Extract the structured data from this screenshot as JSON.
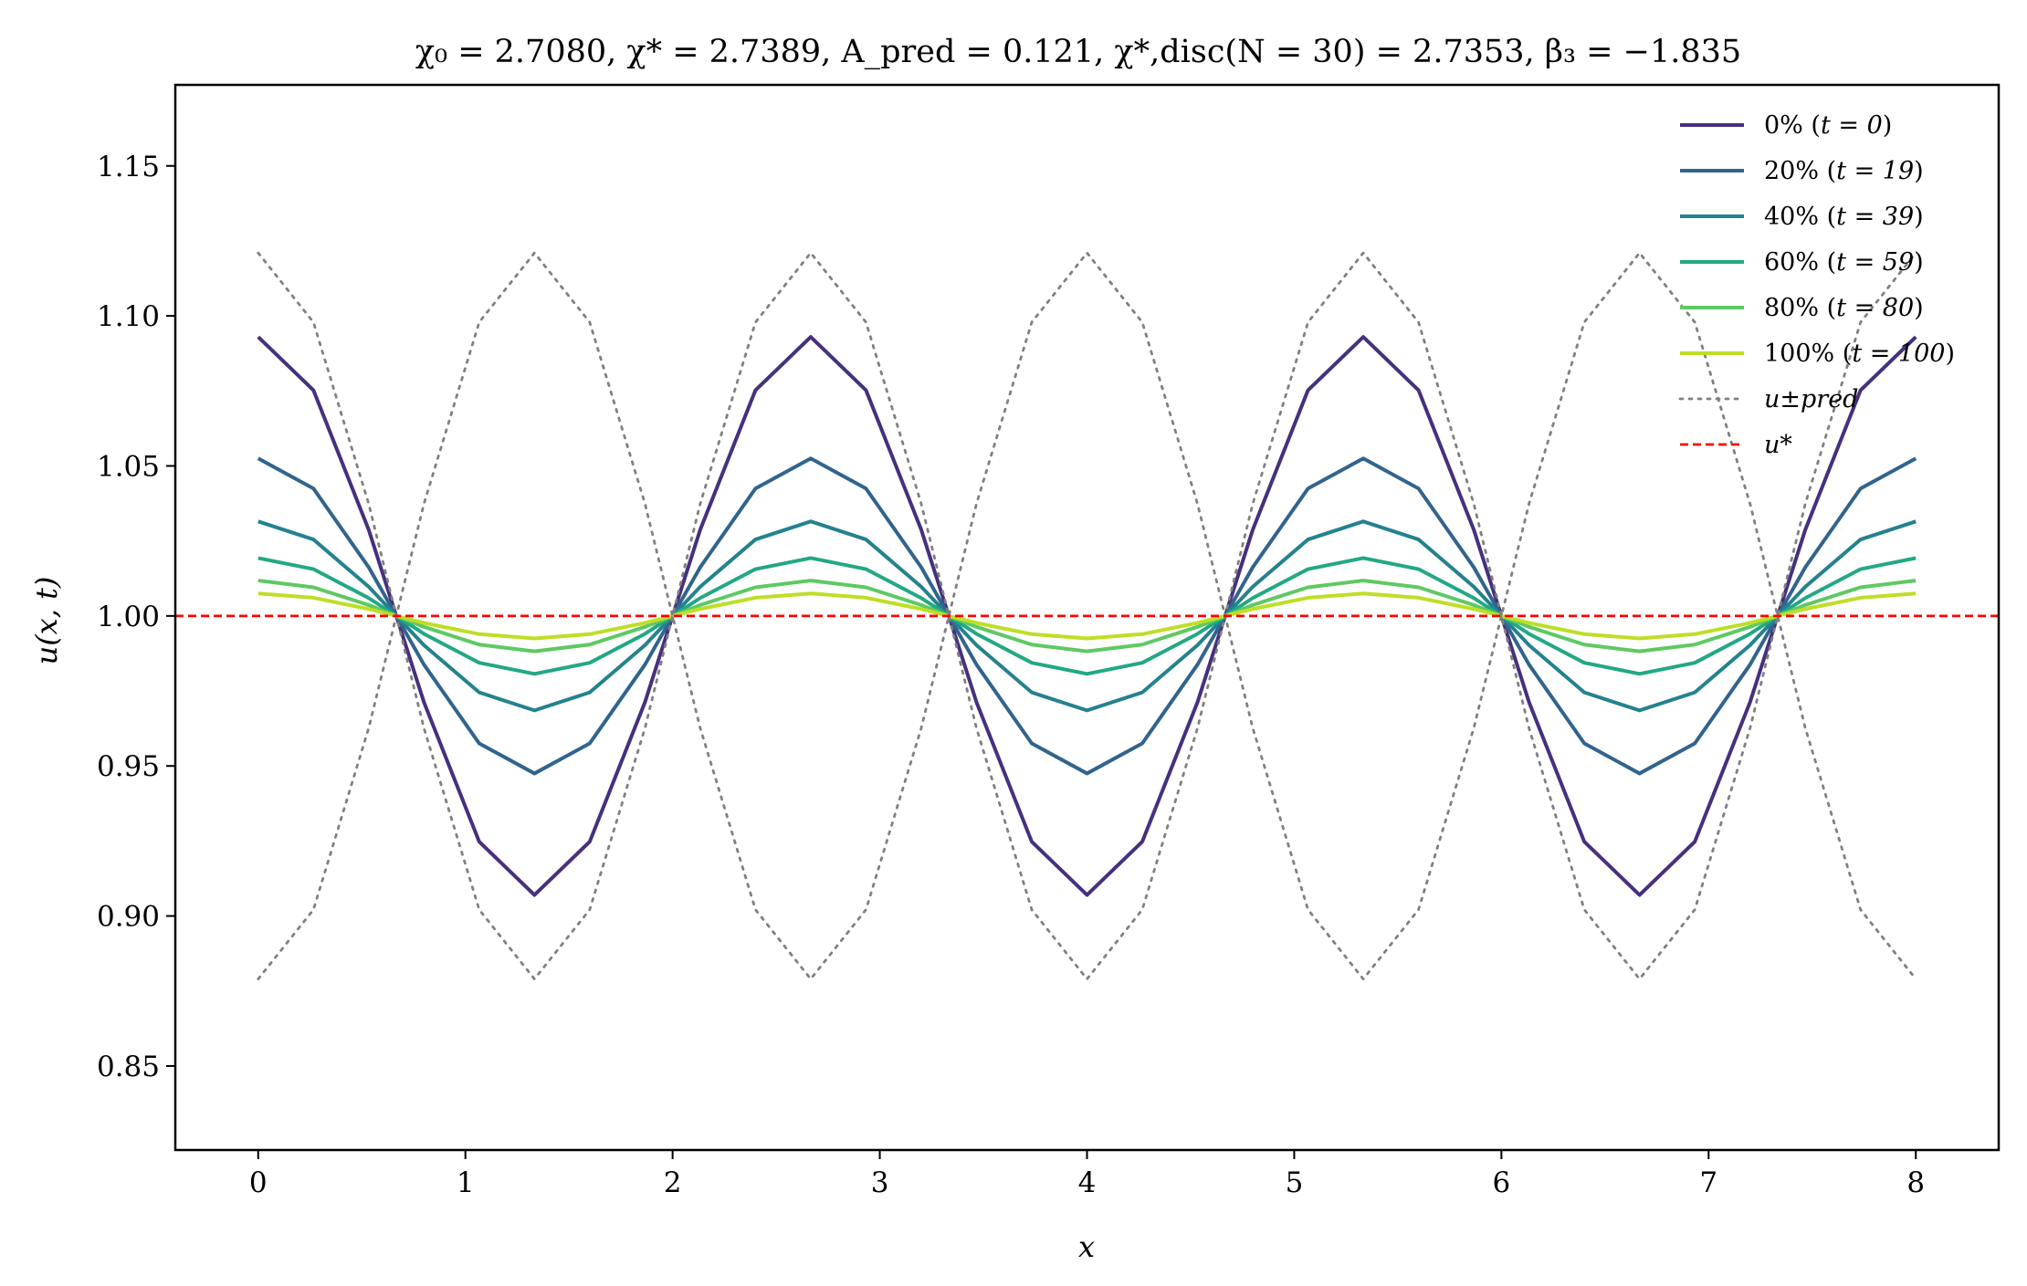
{
  "chart_data": {
    "type": "line",
    "title": "χ₀ = 2.7080,  χ* = 2.7389,  A_pred = 0.121,  χ*,disc(N = 30) = 2.7353,  β₃ = −1.835",
    "xlabel": "x",
    "ylabel": "u(x, t)",
    "xlim": [
      -0.4,
      8.4
    ],
    "ylim": [
      0.822,
      1.177
    ],
    "xticks": [
      0,
      1,
      2,
      3,
      4,
      5,
      6,
      7,
      8
    ],
    "xtick_labels": [
      "0",
      "1",
      "2",
      "3",
      "4",
      "5",
      "6",
      "7",
      "8"
    ],
    "yticks": [
      0.85,
      0.9,
      0.95,
      1.0,
      1.05,
      1.1,
      1.15
    ],
    "ytick_labels": [
      "0.85",
      "0.90",
      "0.95",
      "1.00",
      "1.05",
      "1.10",
      "1.15"
    ],
    "grid": false,
    "legend_position": "top-right",
    "x_grid": {
      "start": 0,
      "end": 8,
      "points": 31
    },
    "profile": "cos(2*pi*x/(8/3))",
    "series": [
      {
        "name": "0% (t = 0)",
        "amplitude": 0.093,
        "color": "#46307e",
        "style": "solid"
      },
      {
        "name": "20% (t = 19)",
        "amplitude": 0.0525,
        "color": "#31648d",
        "style": "solid"
      },
      {
        "name": "40% (t = 39)",
        "amplitude": 0.0315,
        "color": "#24828e",
        "style": "solid"
      },
      {
        "name": "60% (t = 59)",
        "amplitude": 0.0193,
        "color": "#22a884",
        "style": "solid"
      },
      {
        "name": "80% (t = 80)",
        "amplitude": 0.0118,
        "color": "#5ec962",
        "style": "solid"
      },
      {
        "name": "100% (t = 100)",
        "amplitude": 0.0075,
        "color": "#bddf26",
        "style": "solid"
      },
      {
        "name": "u±pred",
        "amplitude": 0.121,
        "mirror": true,
        "color": "#808080",
        "style": "dotted"
      },
      {
        "name": "u*",
        "constant": 1.0,
        "color": "#ff0000",
        "style": "dashed"
      }
    ]
  },
  "legend": {
    "entries": [
      {
        "prefix": "0% (",
        "math": "t = 0",
        "suffix": ")"
      },
      {
        "prefix": "20% (",
        "math": "t = 19",
        "suffix": ")"
      },
      {
        "prefix": "40% (",
        "math": "t = 39",
        "suffix": ")"
      },
      {
        "prefix": "60% (",
        "math": "t = 59",
        "suffix": ")"
      },
      {
        "prefix": "80% (",
        "math": "t = 80",
        "suffix": ")"
      },
      {
        "prefix": "100% (",
        "math": "t = 100",
        "suffix": ")"
      },
      {
        "prefix": "",
        "math": "u±pred",
        "suffix": ""
      },
      {
        "prefix": "",
        "math": "u*",
        "suffix": ""
      }
    ]
  }
}
